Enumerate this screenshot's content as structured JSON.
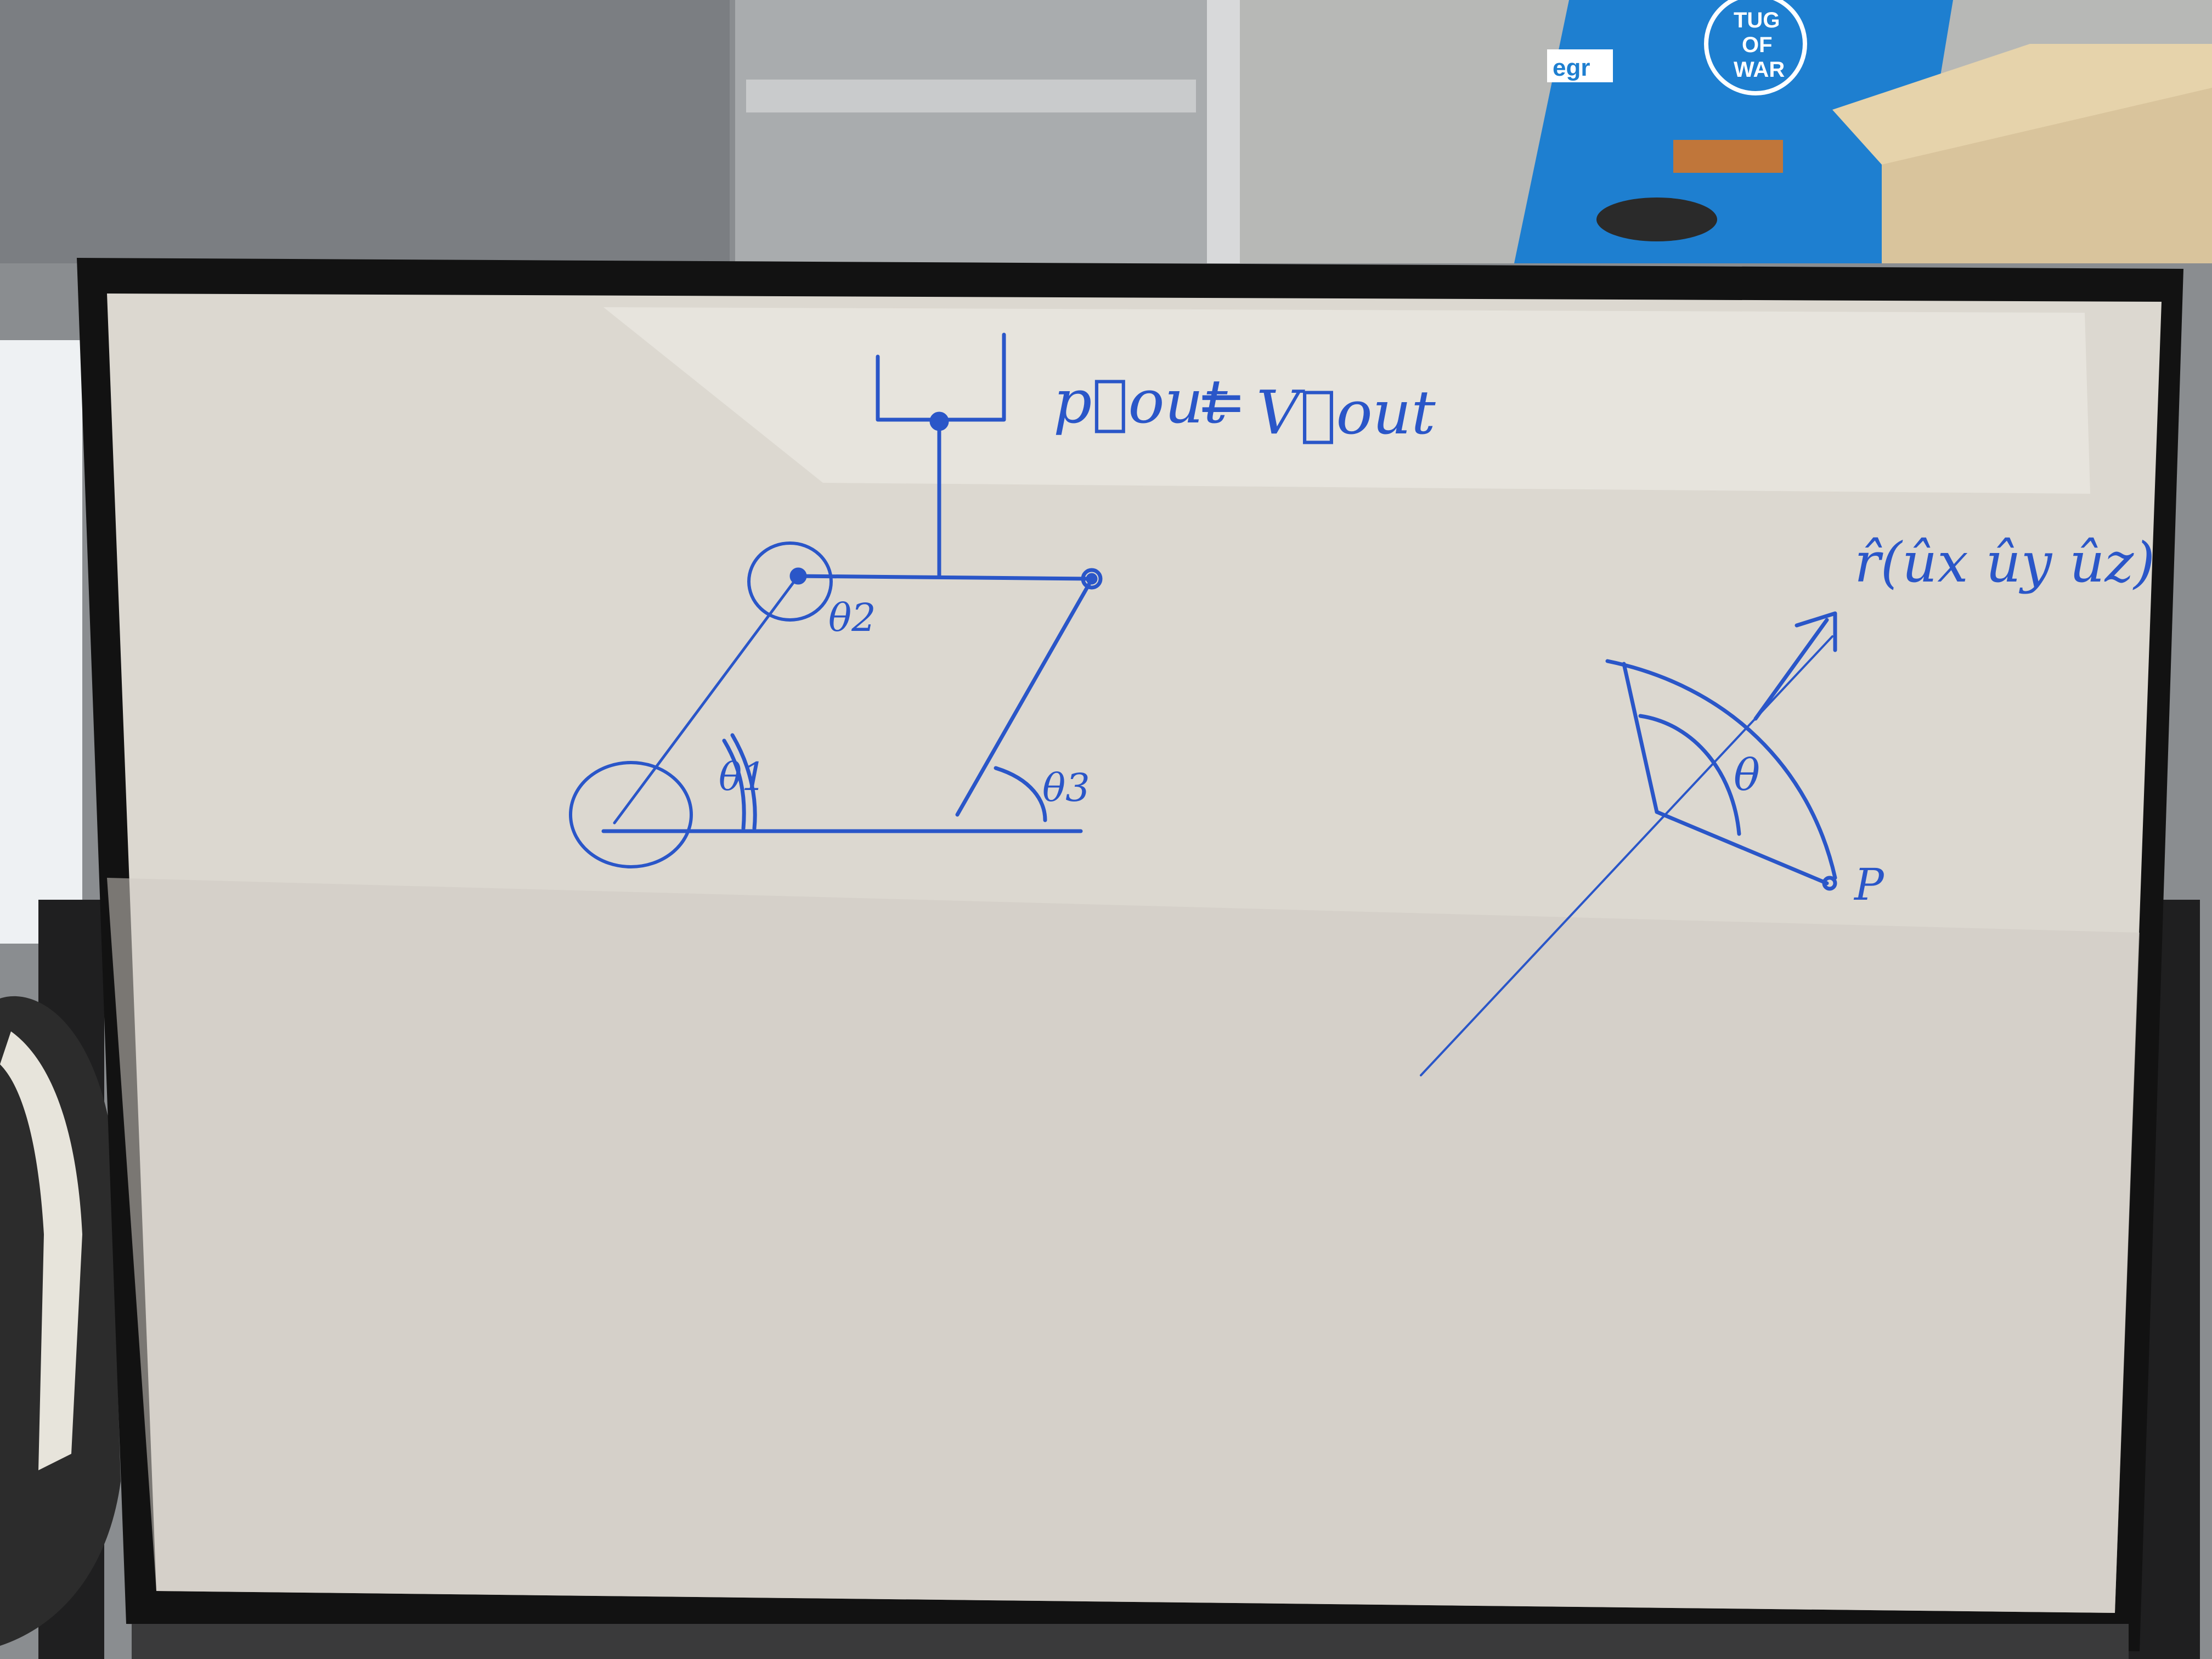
{
  "poster": {
    "logo": "egr",
    "title_line1": "TUG",
    "title_line2": "OF",
    "title_line3": "WAR"
  },
  "whiteboard": {
    "equation_lhs": "p⃗out",
    "equation_eq": "=",
    "equation_rhs": "V⃗out",
    "theta1": "θ1",
    "theta2": "θ2",
    "theta3": "θ3",
    "axis_label": "r̂(ûx ûy ûz)",
    "angle_label": "θ",
    "point_label": "P",
    "ink_color": "#2a56c8"
  }
}
